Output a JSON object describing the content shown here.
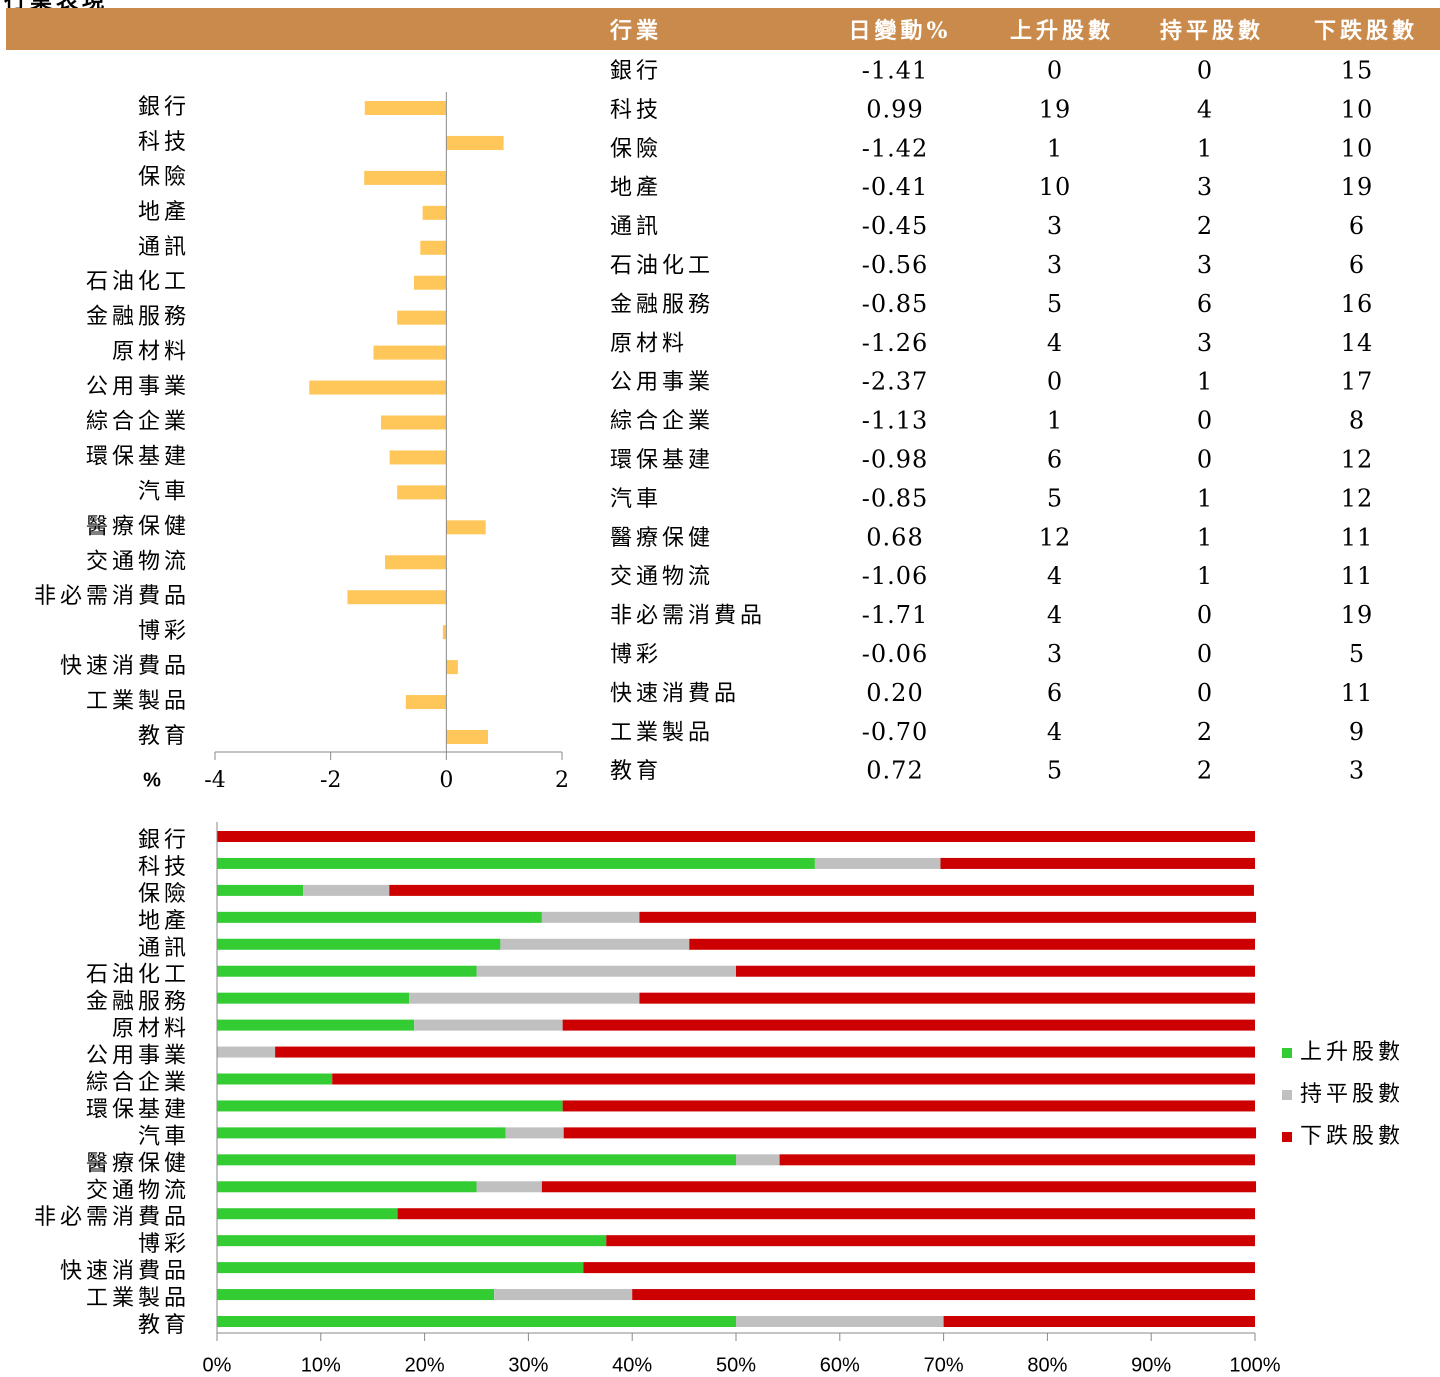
{
  "title": "行業表現",
  "table": {
    "columns": [
      "行業",
      "日變動%",
      "上升股數",
      "持平股數",
      "下跌股數"
    ],
    "rows": [
      [
        "銀行",
        "-1.41",
        "0",
        "0",
        "15"
      ],
      [
        "科技",
        "0.99",
        "19",
        "4",
        "10"
      ],
      [
        "保險",
        "-1.42",
        "1",
        "1",
        "10"
      ],
      [
        "地產",
        "-0.41",
        "10",
        "3",
        "19"
      ],
      [
        "通訊",
        "-0.45",
        "3",
        "2",
        "6"
      ],
      [
        "石油化工",
        "-0.56",
        "3",
        "3",
        "6"
      ],
      [
        "金融服務",
        "-0.85",
        "5",
        "6",
        "16"
      ],
      [
        "原材料",
        "-1.26",
        "4",
        "3",
        "14"
      ],
      [
        "公用事業",
        "-2.37",
        "0",
        "1",
        "17"
      ],
      [
        "綜合企業",
        "-1.13",
        "1",
        "0",
        "8"
      ],
      [
        "環保基建",
        "-0.98",
        "6",
        "0",
        "12"
      ],
      [
        "汽車",
        "-0.85",
        "5",
        "1",
        "12"
      ],
      [
        "醫療保健",
        "0.68",
        "12",
        "1",
        "11"
      ],
      [
        "交通物流",
        "-1.06",
        "4",
        "1",
        "11"
      ],
      [
        "非必需消費品",
        "-1.71",
        "4",
        "0",
        "19"
      ],
      [
        "博彩",
        "-0.06",
        "3",
        "0",
        "5"
      ],
      [
        "快速消費品",
        "0.20",
        "6",
        "0",
        "11"
      ],
      [
        "工業製品",
        "-0.70",
        "4",
        "2",
        "9"
      ],
      [
        "教育",
        "0.72",
        "5",
        "2",
        "3"
      ]
    ]
  },
  "chart_data": [
    {
      "type": "hbar",
      "xlabel": "%",
      "categories": [
        "銀行",
        "科技",
        "保險",
        "地產",
        "通訊",
        "石油化工",
        "金融服務",
        "原材料",
        "公用事業",
        "綜合企業",
        "環保基建",
        "汽車",
        "醫療保健",
        "交通物流",
        "非必需消費品",
        "博彩",
        "快速消費品",
        "工業製品",
        "教育"
      ],
      "values": [
        -1.41,
        0.99,
        -1.42,
        -0.41,
        -0.45,
        -0.56,
        -0.85,
        -1.26,
        -2.37,
        -1.13,
        -0.98,
        -0.85,
        0.68,
        -1.06,
        -1.71,
        -0.06,
        0.2,
        -0.7,
        0.72
      ],
      "color": "#ffc65a",
      "xlim": [
        -4,
        2
      ],
      "xticks": [
        -4,
        -2,
        0,
        2
      ]
    },
    {
      "type": "stacked_hbar",
      "categories": [
        "銀行",
        "科技",
        "保險",
        "地產",
        "通訊",
        "石油化工",
        "金融服務",
        "原材料",
        "公用事業",
        "綜合企業",
        "環保基建",
        "汽車",
        "醫療保健",
        "交通物流",
        "非必需消費品",
        "博彩",
        "快速消費品",
        "工業製品",
        "教育"
      ],
      "series": [
        {
          "name": "上升股數",
          "color": "#33cc33",
          "values": [
            0,
            57.6,
            8.3,
            31.3,
            27.3,
            25,
            18.5,
            19.0,
            0,
            11.1,
            33.3,
            27.8,
            50,
            25,
            17.4,
            37.5,
            35.3,
            26.7,
            50
          ]
        },
        {
          "name": "持平股數",
          "color": "#c0c0c0",
          "values": [
            0,
            12.1,
            8.3,
            9.4,
            18.2,
            25,
            22.2,
            14.3,
            5.6,
            0,
            0,
            5.6,
            4.2,
            6.3,
            0,
            0,
            0,
            13.3,
            20
          ]
        },
        {
          "name": "下跌股數",
          "color": "#cc0000",
          "values": [
            100,
            30.3,
            83.3,
            59.4,
            54.5,
            50,
            59.3,
            66.7,
            94.4,
            88.9,
            66.7,
            66.7,
            45.8,
            68.8,
            82.6,
            62.5,
            64.7,
            60,
            30
          ]
        }
      ],
      "xlim": [
        0,
        100
      ],
      "xticks": [
        {
          "value": 0,
          "label": "0%"
        },
        {
          "value": 10,
          "label": "10%"
        },
        {
          "value": 20,
          "label": "20%"
        },
        {
          "value": 30,
          "label": "30%"
        },
        {
          "value": 40,
          "label": "40%"
        },
        {
          "value": 50,
          "label": "50%"
        },
        {
          "value": 60,
          "label": "60%"
        },
        {
          "value": 70,
          "label": "70%"
        },
        {
          "value": 80,
          "label": "80%"
        },
        {
          "value": 90,
          "label": "90%"
        },
        {
          "value": 100,
          "label": "100%"
        }
      ],
      "legend": "right"
    }
  ]
}
